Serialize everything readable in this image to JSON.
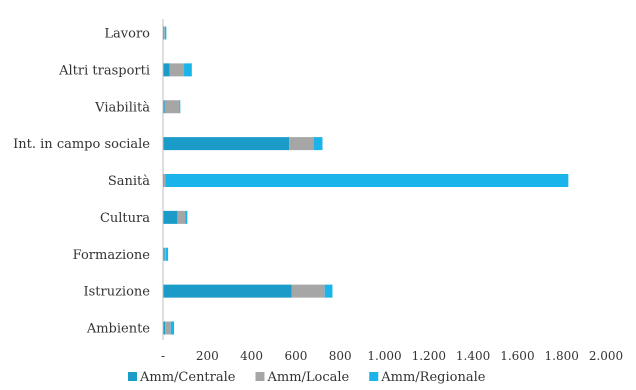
{
  "chart_data": {
    "type": "bar",
    "orientation": "horizontal",
    "stacked": true,
    "categories": [
      "Lavoro",
      "Altri trasporti",
      "Viabilità",
      "Int. in campo sociale",
      "Sanità",
      "Cultura",
      "Formazione",
      "Istruzione",
      "Ambiente"
    ],
    "series": [
      {
        "name": "Amm/Centrale",
        "color": "#1a9bc8",
        "values": [
          5,
          30,
          8,
          570,
          5,
          65,
          8,
          580,
          10
        ]
      },
      {
        "name": "Amm/Locale",
        "color": "#a6a6a6",
        "values": [
          3,
          65,
          65,
          110,
          5,
          35,
          5,
          150,
          25
        ]
      },
      {
        "name": "Amm/Regionale",
        "color": "#1ab3ea",
        "values": [
          7,
          35,
          5,
          40,
          1820,
          10,
          10,
          35,
          15
        ]
      }
    ],
    "xticks": [
      "-",
      "200",
      "400",
      "600",
      "800",
      "1.000",
      "1.200",
      "1.400",
      "1.600",
      "1.800",
      "2.000"
    ],
    "xlim": [
      0,
      2000
    ],
    "grid": false,
    "legend_position": "bottom"
  }
}
